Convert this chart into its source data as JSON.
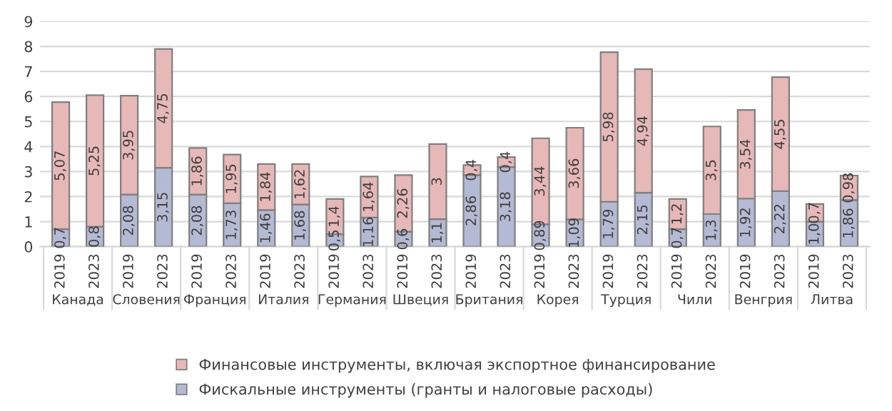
{
  "chart_data": {
    "type": "bar",
    "stacked": true,
    "categories": [
      "2019",
      "2023",
      "2019",
      "2023",
      "2019",
      "2023",
      "2019",
      "2023",
      "2019",
      "2023",
      "2019",
      "2023",
      "2019",
      "2023",
      "2019",
      "2023",
      "2019",
      "2023",
      "2019",
      "2023",
      "2019",
      "2023",
      "2019",
      "2023"
    ],
    "annotations": [
      "Канада",
      "Словения",
      "Франция",
      "Италия",
      "Германия",
      "Швеция",
      "Британия",
      "Корея",
      "Турция",
      "Чили",
      "Венгрия",
      "Литва"
    ],
    "series": [
      {
        "name": "Фискальные инструменты (гранты и налоговые расходы)",
        "color": "#b4bad3",
        "values": [
          0.7,
          0.8,
          2.08,
          3.15,
          2.08,
          1.73,
          1.46,
          1.68,
          0.5,
          1.16,
          0.6,
          1.1,
          2.86,
          3.18,
          0.89,
          1.09,
          1.79,
          2.15,
          0.7,
          1.3,
          1.92,
          2.22,
          1.0,
          1.86
        ],
        "value_labels": [
          "0,7",
          "0,8",
          "2,08",
          "3,15",
          "2,08",
          "1,73",
          "1,46",
          "1,68",
          "0,5",
          "1,16",
          "0,6",
          "1,1",
          "2,86",
          "3,18",
          "0,89",
          "1,09",
          "1,79",
          "2,15",
          "0,7",
          "1,3",
          "1,92",
          "2,22",
          "1,0",
          "1,86"
        ]
      },
      {
        "name": "Финансовые инструменты, включая экспортное финансирование",
        "color": "#e6b8b7",
        "values": [
          5.07,
          5.25,
          3.95,
          4.75,
          1.86,
          1.95,
          1.84,
          1.62,
          1.4,
          1.64,
          2.26,
          3,
          0.4,
          0.4,
          3.44,
          3.66,
          5.98,
          4.94,
          1.2,
          3.5,
          3.54,
          4.55,
          0.7,
          0.98
        ],
        "value_labels": [
          "5,07",
          "5,25",
          "3,95",
          "4,75",
          "1,86",
          "1,95",
          "1,84",
          "1,62",
          "1,4",
          "1,64",
          "2,26",
          "3",
          "0,4",
          "0,4",
          "3,44",
          "3,66",
          "5,98",
          "4,94",
          "1,2",
          "3,5",
          "3,54",
          "4,55",
          "0,7",
          "0,98"
        ]
      }
    ],
    "ylim": [
      0,
      9
    ],
    "yticks": [
      0,
      1,
      2,
      3,
      4,
      5,
      6,
      7,
      8,
      9
    ],
    "grid": "y",
    "legend": "bottom"
  }
}
